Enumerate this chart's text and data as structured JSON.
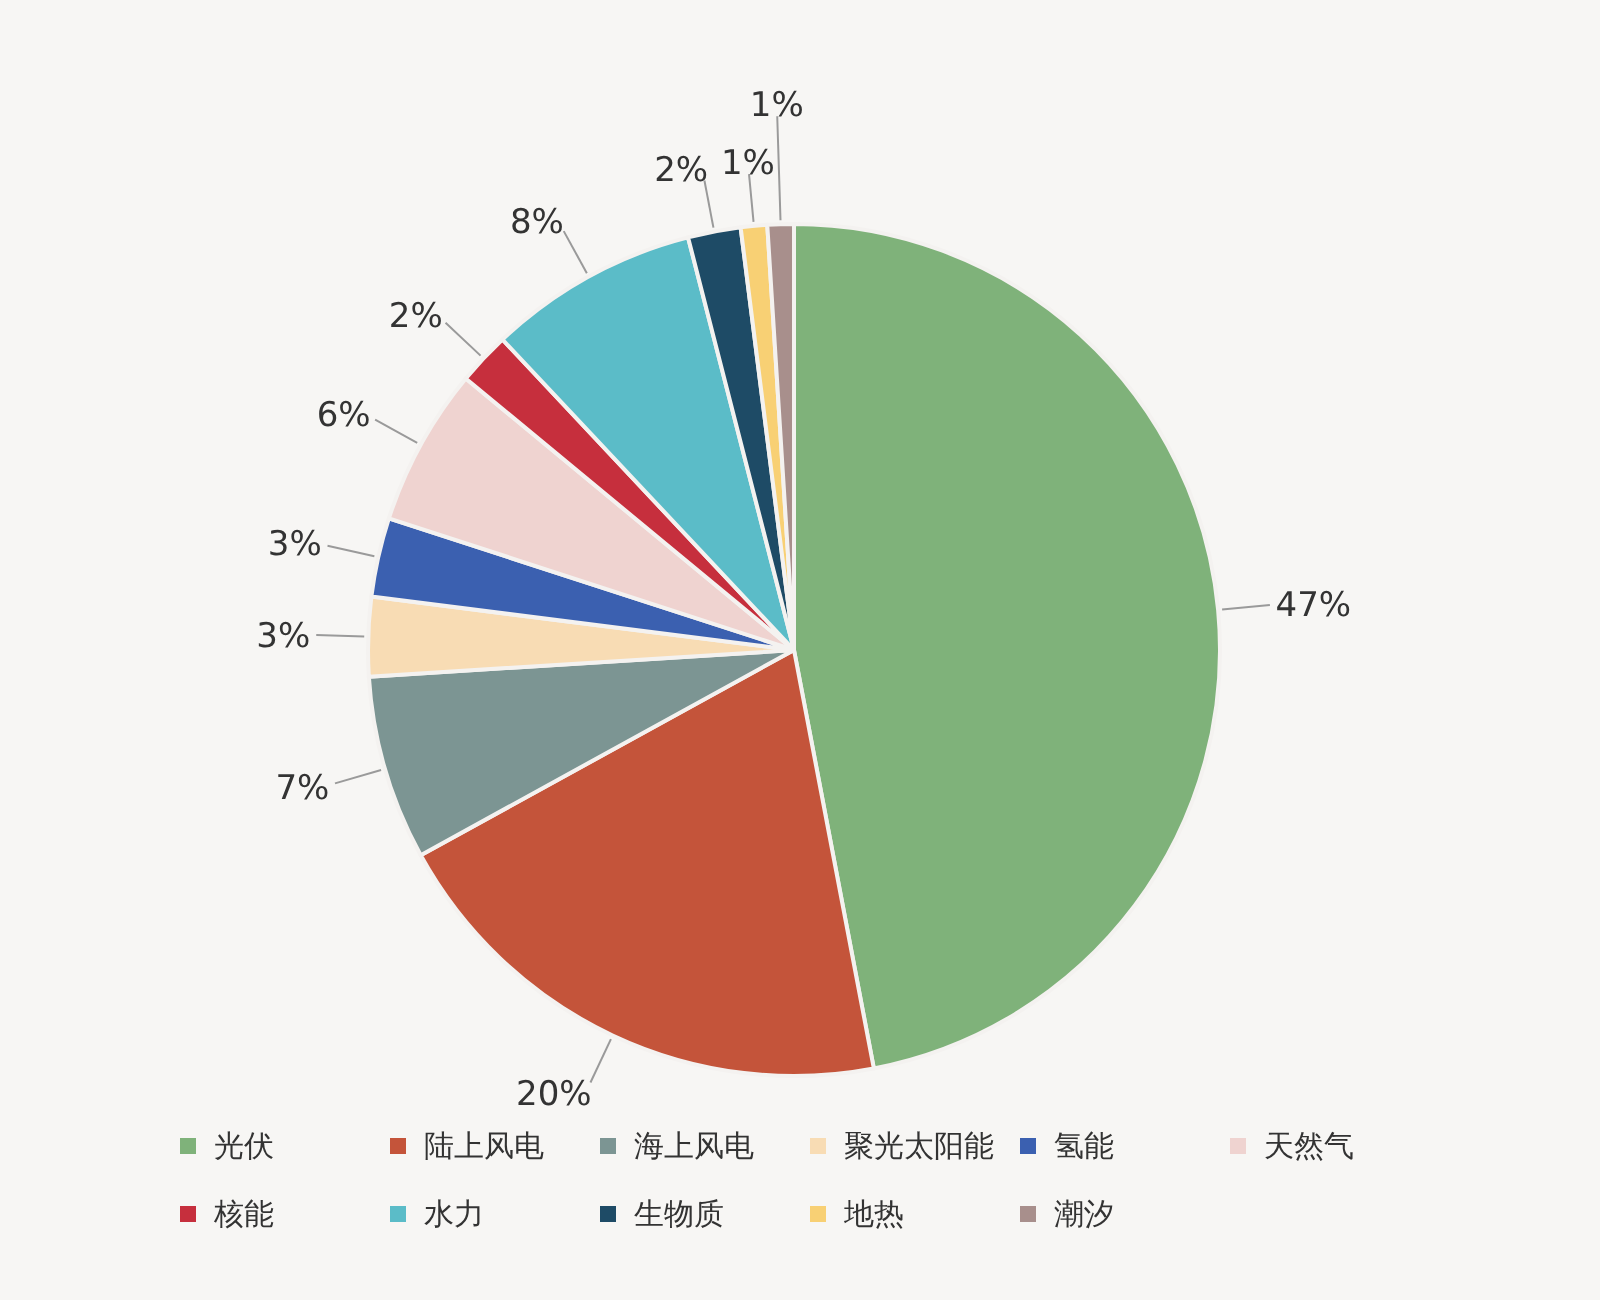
{
  "chart_data": {
    "type": "pie",
    "categories": [
      "光伏",
      "陆上风电",
      "海上风电",
      "聚光太阳能",
      "氢能",
      "天然气",
      "核能",
      "水力",
      "生物质",
      "地热",
      "潮汐"
    ],
    "values": [
      47,
      20,
      7,
      3,
      3,
      6,
      2,
      8,
      2,
      1,
      1
    ],
    "colors": [
      "#7fb27a",
      "#c4543a",
      "#7c9593",
      "#f8dcb4",
      "#3b60b0",
      "#efd3d0",
      "#c62f3d",
      "#5bbcc8",
      "#1e4b66",
      "#f8d074",
      "#a88f8c"
    ],
    "value_labels": [
      "47%",
      "20%",
      "7%",
      "3%",
      "3%",
      "6%",
      "2%",
      "8%",
      "2%",
      "1%",
      "1%"
    ],
    "legend": "bottom"
  }
}
